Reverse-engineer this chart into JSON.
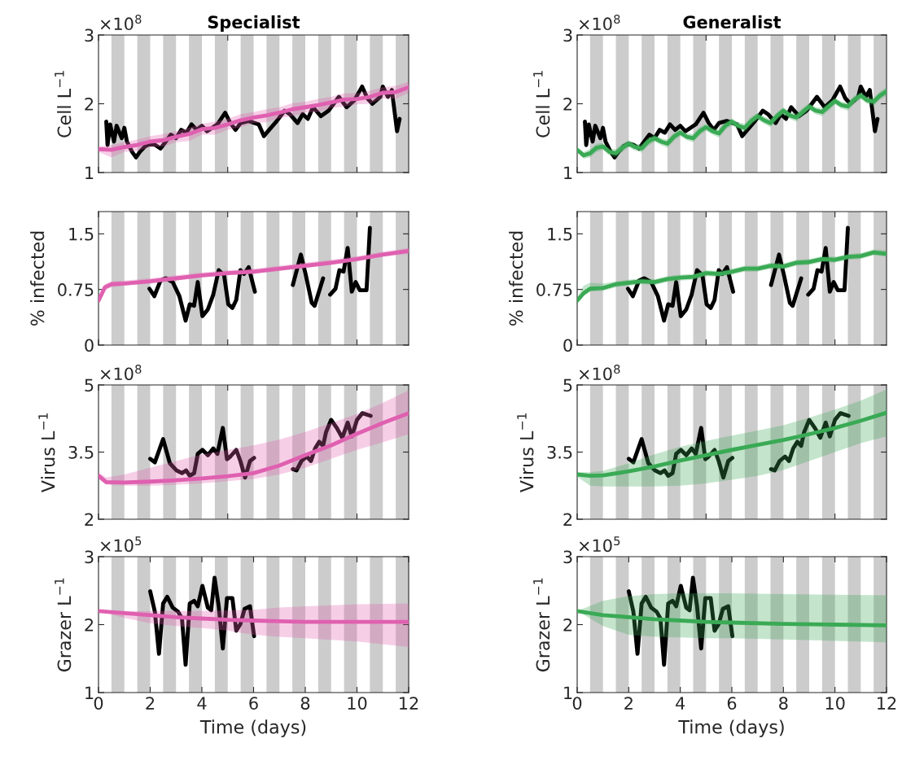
{
  "chart_data": [
    {
      "type": "line",
      "title": "Specialist",
      "ylabel": "Cell L$^{−1}$",
      "annotations": [
        "×10$^{8}$"
      ],
      "xlim": [
        0,
        12
      ],
      "xticks": [
        0,
        5,
        10
      ],
      "ylim": [
        1,
        3
      ],
      "yticks": [
        1,
        2,
        3
      ],
      "tick_labels": "y",
      "bands": [
        {
          "axis": "x",
          "from": 0.5,
          "to": 1,
          "color": "#cccccc"
        },
        {
          "axis": "x",
          "from": 1.5,
          "to": 2,
          "color": "#cccccc"
        },
        {
          "axis": "x",
          "from": 2.5,
          "to": 3,
          "color": "#cccccc"
        },
        {
          "axis": "x",
          "from": 3.5,
          "to": 4,
          "color": "#cccccc"
        },
        {
          "axis": "x",
          "from": 4.5,
          "to": 5,
          "color": "#cccccc"
        },
        {
          "axis": "x",
          "from": 5.5,
          "to": 6,
          "color": "#cccccc"
        },
        {
          "axis": "x",
          "from": 6.5,
          "to": 7,
          "color": "#cccccc"
        },
        {
          "axis": "x",
          "from": 7.5,
          "to": 8,
          "color": "#cccccc"
        },
        {
          "axis": "x",
          "from": 8.5,
          "to": 9,
          "color": "#cccccc"
        },
        {
          "axis": "x",
          "from": 9.5,
          "to": 10,
          "color": "#cccccc"
        },
        {
          "axis": "x",
          "from": 10.5,
          "to": 11,
          "color": "#cccccc"
        },
        {
          "axis": "x",
          "from": 11.5,
          "to": 12,
          "color": "#cccccc"
        }
      ],
      "series": [
        {
          "color": "#000000",
          "x": [
            0.3,
            0.35,
            0.45,
            0.6,
            0.7,
            0.9,
            1.0,
            1.1,
            1.3,
            1.45,
            1.6,
            1.8,
            2.0,
            2.2,
            2.4,
            2.6,
            2.8,
            3.0,
            3.2,
            3.4,
            3.6,
            3.8,
            4.0,
            4.2,
            4.4,
            4.6,
            4.9,
            5.1,
            5.3,
            5.5,
            5.8,
            6.2,
            6.4,
            6.6,
            6.9,
            7.2,
            7.4,
            7.7,
            7.9,
            8.1,
            8.3,
            8.6,
            8.9,
            9.3,
            9.6,
            9.9,
            10.2,
            10.4,
            10.6,
            10.9,
            11.0,
            11.2,
            11.35,
            11.45,
            11.55,
            11.65
          ],
          "values": [
            1.74,
            1.4,
            1.7,
            1.45,
            1.68,
            1.5,
            1.65,
            1.45,
            1.3,
            1.22,
            1.3,
            1.38,
            1.42,
            1.4,
            1.35,
            1.45,
            1.55,
            1.5,
            1.62,
            1.58,
            1.7,
            1.62,
            1.68,
            1.6,
            1.65,
            1.7,
            1.87,
            1.72,
            1.62,
            1.72,
            1.75,
            1.7,
            1.53,
            1.62,
            1.75,
            1.9,
            1.85,
            1.72,
            1.85,
            1.78,
            1.95,
            1.82,
            1.9,
            2.1,
            1.95,
            2.05,
            2.25,
            2.08,
            2.0,
            2.1,
            2.25,
            2.1,
            2.2,
            1.9,
            1.6,
            1.78
          ]
        },
        {
          "color": "#e060b0",
          "x": [
            0,
            0.5,
            1,
            1.5,
            2,
            2.5,
            3,
            3.5,
            4,
            4.5,
            5,
            5.5,
            6,
            6.5,
            7,
            7.5,
            8,
            8.5,
            9,
            9.5,
            10,
            10.5,
            11,
            11.5,
            12
          ],
          "values": [
            1.34,
            1.33,
            1.37,
            1.4,
            1.45,
            1.47,
            1.52,
            1.56,
            1.63,
            1.65,
            1.7,
            1.76,
            1.8,
            1.83,
            1.87,
            1.92,
            1.95,
            1.98,
            2.02,
            2.06,
            2.07,
            2.1,
            2.16,
            2.17,
            2.24
          ],
          "lower": [
            1.3,
            1.22,
            1.3,
            1.31,
            1.37,
            1.38,
            1.44,
            1.46,
            1.55,
            1.55,
            1.62,
            1.66,
            1.72,
            1.73,
            1.79,
            1.82,
            1.87,
            1.88,
            1.94,
            1.96,
            1.99,
            2.0,
            2.08,
            2.07,
            2.16
          ],
          "upper": [
            1.38,
            1.4,
            1.44,
            1.48,
            1.53,
            1.56,
            1.6,
            1.65,
            1.71,
            1.74,
            1.78,
            1.85,
            1.88,
            1.92,
            1.95,
            2.01,
            2.03,
            2.07,
            2.1,
            2.15,
            2.15,
            2.19,
            2.24,
            2.26,
            2.32
          ]
        }
      ]
    },
    {
      "type": "line",
      "title": "Generalist",
      "ylabel": "Cell L$^{−1}$",
      "annotations": [
        "×10$^{8}$"
      ],
      "xlim": [
        0,
        12
      ],
      "xticks": [
        0,
        5,
        10
      ],
      "ylim": [
        1,
        3
      ],
      "yticks": [
        1,
        2,
        3
      ],
      "tick_labels": "y",
      "bands": [
        {
          "axis": "x",
          "from": 0.5,
          "to": 1,
          "color": "#cccccc"
        },
        {
          "axis": "x",
          "from": 1.5,
          "to": 2,
          "color": "#cccccc"
        },
        {
          "axis": "x",
          "from": 2.5,
          "to": 3,
          "color": "#cccccc"
        },
        {
          "axis": "x",
          "from": 3.5,
          "to": 4,
          "color": "#cccccc"
        },
        {
          "axis": "x",
          "from": 4.5,
          "to": 5,
          "color": "#cccccc"
        },
        {
          "axis": "x",
          "from": 5.5,
          "to": 6,
          "color": "#cccccc"
        },
        {
          "axis": "x",
          "from": 6.5,
          "to": 7,
          "color": "#cccccc"
        },
        {
          "axis": "x",
          "from": 7.5,
          "to": 8,
          "color": "#cccccc"
        },
        {
          "axis": "x",
          "from": 8.5,
          "to": 9,
          "color": "#cccccc"
        },
        {
          "axis": "x",
          "from": 9.5,
          "to": 10,
          "color": "#cccccc"
        },
        {
          "axis": "x",
          "from": 10.5,
          "to": 11,
          "color": "#cccccc"
        },
        {
          "axis": "x",
          "from": 11.5,
          "to": 12,
          "color": "#cccccc"
        }
      ],
      "series": [
        {
          "color": "#000000",
          "x": [
            0.3,
            0.35,
            0.45,
            0.6,
            0.7,
            0.9,
            1.0,
            1.1,
            1.3,
            1.45,
            1.6,
            1.8,
            2.0,
            2.2,
            2.4,
            2.6,
            2.8,
            3.0,
            3.2,
            3.4,
            3.6,
            3.8,
            4.0,
            4.2,
            4.4,
            4.6,
            4.9,
            5.1,
            5.3,
            5.5,
            5.8,
            6.2,
            6.4,
            6.6,
            6.9,
            7.2,
            7.4,
            7.7,
            7.9,
            8.1,
            8.3,
            8.6,
            8.9,
            9.3,
            9.6,
            9.9,
            10.2,
            10.4,
            10.6,
            10.9,
            11.0,
            11.2,
            11.35,
            11.45,
            11.55,
            11.65
          ],
          "values": [
            1.74,
            1.4,
            1.7,
            1.45,
            1.68,
            1.5,
            1.65,
            1.45,
            1.3,
            1.22,
            1.3,
            1.38,
            1.42,
            1.4,
            1.35,
            1.45,
            1.55,
            1.5,
            1.62,
            1.58,
            1.7,
            1.62,
            1.68,
            1.6,
            1.65,
            1.7,
            1.87,
            1.72,
            1.62,
            1.72,
            1.75,
            1.7,
            1.53,
            1.62,
            1.75,
            1.9,
            1.85,
            1.72,
            1.85,
            1.78,
            1.95,
            1.82,
            1.9,
            2.1,
            1.95,
            2.05,
            2.25,
            2.08,
            2.0,
            2.1,
            2.25,
            2.1,
            2.2,
            1.9,
            1.6,
            1.78
          ]
        },
        {
          "color": "#3aaa55",
          "x": [
            0,
            0.25,
            0.5,
            0.75,
            1,
            1.25,
            1.5,
            1.75,
            2,
            2.25,
            2.5,
            2.75,
            3,
            3.25,
            3.5,
            3.75,
            4,
            4.25,
            4.5,
            4.75,
            5,
            5.25,
            5.5,
            5.75,
            6,
            6.25,
            6.5,
            6.75,
            7,
            7.25,
            7.5,
            7.75,
            8,
            8.25,
            8.5,
            8.75,
            9,
            9.25,
            9.5,
            9.75,
            10,
            10.25,
            10.5,
            10.75,
            11,
            11.25,
            11.5,
            11.75,
            12
          ],
          "values": [
            1.33,
            1.25,
            1.28,
            1.36,
            1.38,
            1.3,
            1.28,
            1.36,
            1.42,
            1.37,
            1.35,
            1.45,
            1.5,
            1.45,
            1.42,
            1.52,
            1.58,
            1.52,
            1.5,
            1.6,
            1.66,
            1.6,
            1.57,
            1.68,
            1.74,
            1.68,
            1.65,
            1.75,
            1.82,
            1.76,
            1.72,
            1.82,
            1.9,
            1.83,
            1.8,
            1.88,
            1.96,
            1.9,
            1.88,
            1.96,
            2.04,
            1.98,
            1.96,
            2.06,
            2.12,
            2.05,
            2.03,
            2.12,
            2.18
          ],
          "lower": [
            1.3,
            1.2,
            1.22,
            1.3,
            1.33,
            1.25,
            1.22,
            1.3,
            1.37,
            1.32,
            1.29,
            1.39,
            1.45,
            1.4,
            1.36,
            1.46,
            1.53,
            1.47,
            1.44,
            1.54,
            1.61,
            1.55,
            1.51,
            1.62,
            1.69,
            1.63,
            1.59,
            1.69,
            1.77,
            1.71,
            1.66,
            1.76,
            1.85,
            1.78,
            1.74,
            1.82,
            1.91,
            1.85,
            1.82,
            1.9,
            1.99,
            1.93,
            1.9,
            2.0,
            2.07,
            2.0,
            1.97,
            2.06,
            2.12
          ],
          "upper": [
            1.36,
            1.3,
            1.34,
            1.42,
            1.43,
            1.35,
            1.34,
            1.42,
            1.47,
            1.42,
            1.41,
            1.51,
            1.55,
            1.5,
            1.48,
            1.58,
            1.63,
            1.57,
            1.56,
            1.66,
            1.71,
            1.65,
            1.63,
            1.74,
            1.79,
            1.73,
            1.71,
            1.81,
            1.87,
            1.81,
            1.78,
            1.88,
            1.95,
            1.88,
            1.86,
            1.94,
            2.01,
            1.95,
            1.94,
            2.02,
            2.09,
            2.03,
            2.02,
            2.12,
            2.17,
            2.1,
            2.09,
            2.18,
            2.24
          ]
        }
      ]
    },
    {
      "type": "line",
      "ylabel": "% infected",
      "xlim": [
        0,
        12
      ],
      "xticks": [
        0,
        5,
        10
      ],
      "ylim": [
        0,
        1.8
      ],
      "yticks": [
        0,
        0.75,
        1.5
      ],
      "tick_labels": "y",
      "bands": [
        {
          "axis": "x",
          "from": 0.5,
          "to": 1,
          "color": "#cccccc"
        },
        {
          "axis": "x",
          "from": 1.5,
          "to": 2,
          "color": "#cccccc"
        },
        {
          "axis": "x",
          "from": 2.5,
          "to": 3,
          "color": "#cccccc"
        },
        {
          "axis": "x",
          "from": 3.5,
          "to": 4,
          "color": "#cccccc"
        },
        {
          "axis": "x",
          "from": 4.5,
          "to": 5,
          "color": "#cccccc"
        },
        {
          "axis": "x",
          "from": 5.5,
          "to": 6,
          "color": "#cccccc"
        },
        {
          "axis": "x",
          "from": 6.5,
          "to": 7,
          "color": "#cccccc"
        },
        {
          "axis": "x",
          "from": 7.5,
          "to": 8,
          "color": "#cccccc"
        },
        {
          "axis": "x",
          "from": 8.5,
          "to": 9,
          "color": "#cccccc"
        },
        {
          "axis": "x",
          "from": 9.5,
          "to": 10,
          "color": "#cccccc"
        },
        {
          "axis": "x",
          "from": 10.5,
          "to": 11,
          "color": "#cccccc"
        },
        {
          "axis": "x",
          "from": 11.5,
          "to": 12,
          "color": "#cccccc"
        }
      ],
      "series": [
        {
          "color": "#000000",
          "x": [
            1.97,
            2.16,
            2.4,
            2.6,
            2.87,
            3.13,
            3.37,
            3.53,
            3.7,
            3.84,
            4.02,
            4.23,
            4.44,
            4.65,
            4.86,
            5.02,
            5.18,
            5.33,
            5.49,
            5.63,
            5.81,
            6.05,
            6.8,
            7.52,
            7.83,
            8.01,
            8.25,
            8.36,
            8.69,
            8.8,
            8.96,
            9.17,
            9.32,
            9.48,
            9.64,
            9.8,
            9.95,
            10.11,
            10.37,
            10.5
          ],
          "values": [
            0.76,
            0.66,
            0.87,
            0.9,
            0.85,
            0.66,
            0.33,
            0.55,
            0.53,
            0.85,
            0.39,
            0.48,
            0.68,
            1.01,
            0.94,
            0.55,
            0.5,
            0.61,
            1.01,
            0.96,
            1.05,
            0.72,
            null,
            0.81,
            1.22,
            0.96,
            0.57,
            0.53,
            0.9,
            null,
            0.68,
            0.76,
            1.01,
            0.99,
            1.31,
            0.72,
            0.85,
            0.74,
            0.74,
            1.58
          ]
        },
        {
          "color": "#e060b0",
          "x": [
            0,
            0.25,
            0.5,
            1,
            2,
            3,
            4,
            5,
            6,
            7,
            8,
            9,
            10,
            11,
            12
          ],
          "values": [
            0.6,
            0.78,
            0.82,
            0.83,
            0.86,
            0.9,
            0.94,
            0.97,
            0.99,
            1.03,
            1.07,
            1.11,
            1.16,
            1.22,
            1.27
          ],
          "lower": [
            0.57,
            0.74,
            0.78,
            0.8,
            0.83,
            0.87,
            0.91,
            0.94,
            0.96,
            1.0,
            1.04,
            1.08,
            1.13,
            1.19,
            1.23
          ],
          "upper": [
            0.63,
            0.82,
            0.86,
            0.87,
            0.9,
            0.94,
            0.98,
            1.01,
            1.03,
            1.07,
            1.11,
            1.15,
            1.2,
            1.26,
            1.31
          ]
        }
      ]
    },
    {
      "type": "line",
      "ylabel": "% infected",
      "xlim": [
        0,
        12
      ],
      "xticks": [
        0,
        5,
        10
      ],
      "ylim": [
        0,
        1.8
      ],
      "yticks": [
        0,
        0.75,
        1.5
      ],
      "tick_labels": "y",
      "bands": [
        {
          "axis": "x",
          "from": 0.5,
          "to": 1,
          "color": "#cccccc"
        },
        {
          "axis": "x",
          "from": 1.5,
          "to": 2,
          "color": "#cccccc"
        },
        {
          "axis": "x",
          "from": 2.5,
          "to": 3,
          "color": "#cccccc"
        },
        {
          "axis": "x",
          "from": 3.5,
          "to": 4,
          "color": "#cccccc"
        },
        {
          "axis": "x",
          "from": 4.5,
          "to": 5,
          "color": "#cccccc"
        },
        {
          "axis": "x",
          "from": 5.5,
          "to": 6,
          "color": "#cccccc"
        },
        {
          "axis": "x",
          "from": 6.5,
          "to": 7,
          "color": "#cccccc"
        },
        {
          "axis": "x",
          "from": 7.5,
          "to": 8,
          "color": "#cccccc"
        },
        {
          "axis": "x",
          "from": 8.5,
          "to": 9,
          "color": "#cccccc"
        },
        {
          "axis": "x",
          "from": 9.5,
          "to": 10,
          "color": "#cccccc"
        },
        {
          "axis": "x",
          "from": 10.5,
          "to": 11,
          "color": "#cccccc"
        },
        {
          "axis": "x",
          "from": 11.5,
          "to": 12,
          "color": "#cccccc"
        }
      ],
      "series": [
        {
          "color": "#000000",
          "x": [
            1.97,
            2.16,
            2.4,
            2.6,
            2.87,
            3.13,
            3.37,
            3.53,
            3.7,
            3.84,
            4.02,
            4.23,
            4.44,
            4.65,
            4.86,
            5.02,
            5.18,
            5.33,
            5.49,
            5.63,
            5.81,
            6.05,
            6.8,
            7.52,
            7.83,
            8.01,
            8.25,
            8.36,
            8.69,
            8.8,
            8.96,
            9.17,
            9.32,
            9.48,
            9.64,
            9.8,
            9.95,
            10.11,
            10.37,
            10.5
          ],
          "values": [
            0.76,
            0.66,
            0.87,
            0.9,
            0.85,
            0.66,
            0.33,
            0.55,
            0.53,
            0.85,
            0.39,
            0.48,
            0.68,
            1.01,
            0.94,
            0.55,
            0.5,
            0.61,
            1.01,
            0.96,
            1.05,
            0.72,
            null,
            0.81,
            1.22,
            0.96,
            0.57,
            0.53,
            0.9,
            null,
            0.68,
            0.76,
            1.01,
            0.99,
            1.31,
            0.72,
            0.85,
            0.74,
            0.74,
            1.58
          ]
        },
        {
          "color": "#3aaa55",
          "x": [
            0,
            0.25,
            0.5,
            1,
            1.5,
            2,
            2.5,
            3,
            3.5,
            4,
            4.5,
            5,
            5.5,
            6,
            6.5,
            7,
            7.5,
            8,
            8.5,
            9,
            9.5,
            10,
            10.5,
            11,
            11.5,
            12
          ],
          "values": [
            0.6,
            0.7,
            0.76,
            0.77,
            0.82,
            0.84,
            0.86,
            0.85,
            0.89,
            0.91,
            0.92,
            0.97,
            0.96,
            0.99,
            1.03,
            1.03,
            1.07,
            1.06,
            1.11,
            1.12,
            1.16,
            1.15,
            1.19,
            1.2,
            1.25,
            1.23
          ],
          "lower": [
            0.56,
            0.66,
            0.72,
            0.73,
            0.78,
            0.8,
            0.82,
            0.81,
            0.85,
            0.87,
            0.88,
            0.93,
            0.92,
            0.95,
            0.99,
            0.99,
            1.03,
            1.02,
            1.07,
            1.08,
            1.12,
            1.11,
            1.15,
            1.16,
            1.21,
            1.19
          ],
          "upper": [
            0.64,
            0.8,
            0.84,
            0.83,
            0.86,
            0.88,
            0.9,
            0.89,
            0.93,
            0.95,
            0.96,
            1.01,
            1.0,
            1.03,
            1.07,
            1.07,
            1.11,
            1.1,
            1.15,
            1.16,
            1.2,
            1.19,
            1.23,
            1.24,
            1.29,
            1.28
          ]
        }
      ]
    },
    {
      "type": "line",
      "ylabel": "Virus L$^{−1}$",
      "annotations": [
        "×10$^{8}$"
      ],
      "xlim": [
        0,
        12
      ],
      "xticks": [
        0,
        5,
        10
      ],
      "ylim": [
        2,
        5
      ],
      "yticks": [
        2,
        3.5,
        5
      ],
      "tick_labels": "y",
      "bands": [
        {
          "axis": "x",
          "from": 0.5,
          "to": 1,
          "color": "#cccccc"
        },
        {
          "axis": "x",
          "from": 1.5,
          "to": 2,
          "color": "#cccccc"
        },
        {
          "axis": "x",
          "from": 2.5,
          "to": 3,
          "color": "#cccccc"
        },
        {
          "axis": "x",
          "from": 3.5,
          "to": 4,
          "color": "#cccccc"
        },
        {
          "axis": "x",
          "from": 4.5,
          "to": 5,
          "color": "#cccccc"
        },
        {
          "axis": "x",
          "from": 5.5,
          "to": 6,
          "color": "#cccccc"
        },
        {
          "axis": "x",
          "from": 6.5,
          "to": 7,
          "color": "#cccccc"
        },
        {
          "axis": "x",
          "from": 7.5,
          "to": 8,
          "color": "#cccccc"
        },
        {
          "axis": "x",
          "from": 8.5,
          "to": 9,
          "color": "#cccccc"
        },
        {
          "axis": "x",
          "from": 9.5,
          "to": 10,
          "color": "#cccccc"
        },
        {
          "axis": "x",
          "from": 10.5,
          "to": 11,
          "color": "#cccccc"
        },
        {
          "axis": "x",
          "from": 11.5,
          "to": 12,
          "color": "#cccccc"
        }
      ],
      "series": [
        {
          "color": "#000000",
          "x": [
            2.0,
            2.18,
            2.5,
            2.76,
            3.02,
            3.23,
            3.39,
            3.53,
            3.7,
            3.84,
            4.02,
            4.23,
            4.44,
            4.6,
            4.81,
            4.97,
            5.1,
            5.33,
            5.49,
            5.67,
            5.86,
            6.02,
            6.8,
            7.52,
            7.66,
            7.85,
            8.06,
            8.22,
            8.38,
            8.54,
            8.69,
            8.8,
            9.0,
            9.22,
            9.43,
            9.64,
            9.8,
            10.0,
            10.21,
            10.53
          ],
          "values": [
            3.35,
            3.27,
            3.79,
            3.25,
            3.09,
            3.03,
            3.09,
            2.97,
            3.03,
            3.46,
            3.55,
            3.43,
            3.58,
            3.46,
            4.04,
            3.34,
            3.4,
            3.55,
            3.3,
            2.93,
            3.3,
            3.37,
            null,
            3.12,
            3.09,
            3.3,
            3.4,
            3.3,
            3.58,
            3.73,
            3.64,
            3.94,
            4.22,
            4.04,
            3.82,
            4.16,
            3.85,
            4.22,
            4.37,
            4.31
          ]
        },
        {
          "color": "#e060b0",
          "x": [
            0,
            0.3,
            1,
            2,
            3,
            4,
            5,
            6,
            7,
            8,
            9,
            10,
            11,
            12
          ],
          "values": [
            2.97,
            2.83,
            2.82,
            2.84,
            2.87,
            2.91,
            2.96,
            3.03,
            3.2,
            3.43,
            3.65,
            3.91,
            4.15,
            4.37
          ],
          "lower": [
            2.9,
            2.77,
            2.75,
            2.75,
            2.77,
            2.8,
            2.85,
            2.9,
            3.0,
            3.15,
            3.35,
            3.55,
            3.72,
            3.9
          ],
          "upper": [
            3.05,
            2.93,
            3.0,
            3.15,
            3.3,
            3.45,
            3.55,
            3.65,
            3.78,
            3.95,
            4.15,
            4.35,
            4.6,
            4.88
          ]
        }
      ]
    },
    {
      "type": "line",
      "ylabel": "Virus L$^{−1}$",
      "annotations": [
        "×10$^{8}$"
      ],
      "xlim": [
        0,
        12
      ],
      "xticks": [
        0,
        5,
        10
      ],
      "ylim": [
        2,
        5
      ],
      "yticks": [
        2,
        3.5,
        5
      ],
      "tick_labels": "y",
      "bands": [
        {
          "axis": "x",
          "from": 0.5,
          "to": 1,
          "color": "#cccccc"
        },
        {
          "axis": "x",
          "from": 1.5,
          "to": 2,
          "color": "#cccccc"
        },
        {
          "axis": "x",
          "from": 2.5,
          "to": 3,
          "color": "#cccccc"
        },
        {
          "axis": "x",
          "from": 3.5,
          "to": 4,
          "color": "#cccccc"
        },
        {
          "axis": "x",
          "from": 4.5,
          "to": 5,
          "color": "#cccccc"
        },
        {
          "axis": "x",
          "from": 5.5,
          "to": 6,
          "color": "#cccccc"
        },
        {
          "axis": "x",
          "from": 6.5,
          "to": 7,
          "color": "#cccccc"
        },
        {
          "axis": "x",
          "from": 7.5,
          "to": 8,
          "color": "#cccccc"
        },
        {
          "axis": "x",
          "from": 8.5,
          "to": 9,
          "color": "#cccccc"
        },
        {
          "axis": "x",
          "from": 9.5,
          "to": 10,
          "color": "#cccccc"
        },
        {
          "axis": "x",
          "from": 10.5,
          "to": 11,
          "color": "#cccccc"
        },
        {
          "axis": "x",
          "from": 11.5,
          "to": 12,
          "color": "#cccccc"
        }
      ],
      "series": [
        {
          "color": "#000000",
          "x": [
            2.0,
            2.18,
            2.5,
            2.76,
            3.02,
            3.23,
            3.39,
            3.53,
            3.7,
            3.84,
            4.02,
            4.23,
            4.44,
            4.6,
            4.81,
            4.97,
            5.1,
            5.33,
            5.49,
            5.67,
            5.86,
            6.02,
            6.8,
            7.52,
            7.66,
            7.85,
            8.06,
            8.22,
            8.38,
            8.54,
            8.69,
            8.8,
            9.0,
            9.22,
            9.43,
            9.64,
            9.8,
            10.0,
            10.21,
            10.53
          ],
          "values": [
            3.35,
            3.27,
            3.79,
            3.25,
            3.09,
            3.03,
            3.09,
            2.97,
            3.03,
            3.46,
            3.55,
            3.43,
            3.58,
            3.46,
            4.04,
            3.34,
            3.4,
            3.55,
            3.3,
            2.93,
            3.3,
            3.37,
            null,
            3.12,
            3.09,
            3.3,
            3.4,
            3.3,
            3.58,
            3.73,
            3.64,
            3.94,
            4.22,
            4.04,
            3.82,
            4.16,
            3.85,
            4.22,
            4.37,
            4.31
          ]
        },
        {
          "color": "#3aaa55",
          "x": [
            0,
            0.5,
            1,
            2,
            3,
            4,
            5,
            6,
            7,
            8,
            9,
            10,
            11,
            12
          ],
          "values": [
            3.0,
            2.97,
            2.98,
            3.07,
            3.18,
            3.31,
            3.43,
            3.55,
            3.66,
            3.77,
            3.9,
            4.04,
            4.2,
            4.38
          ],
          "lower": [
            2.95,
            2.75,
            2.73,
            2.73,
            2.73,
            2.75,
            2.8,
            2.88,
            2.97,
            3.1,
            3.3,
            3.5,
            3.7,
            3.85
          ],
          "upper": [
            3.05,
            3.05,
            3.08,
            3.25,
            3.45,
            3.62,
            3.75,
            3.87,
            3.98,
            4.1,
            4.27,
            4.45,
            4.65,
            4.9
          ]
        }
      ]
    },
    {
      "type": "line",
      "ylabel": "Grazer L$^{−1}$",
      "xlabel": "Time (days)",
      "annotations": [
        "×10$^{5}$"
      ],
      "xlim": [
        0,
        12
      ],
      "xticks": [
        0,
        2,
        4,
        6,
        8,
        10,
        12
      ],
      "ylim": [
        1,
        3
      ],
      "yticks": [
        1,
        2,
        3
      ],
      "bands": [
        {
          "axis": "x",
          "from": 0.5,
          "to": 1,
          "color": "#cccccc"
        },
        {
          "axis": "x",
          "from": 1.5,
          "to": 2,
          "color": "#cccccc"
        },
        {
          "axis": "x",
          "from": 2.5,
          "to": 3,
          "color": "#cccccc"
        },
        {
          "axis": "x",
          "from": 3.5,
          "to": 4,
          "color": "#cccccc"
        },
        {
          "axis": "x",
          "from": 4.5,
          "to": 5,
          "color": "#cccccc"
        },
        {
          "axis": "x",
          "from": 5.5,
          "to": 6,
          "color": "#cccccc"
        },
        {
          "axis": "x",
          "from": 6.5,
          "to": 7,
          "color": "#cccccc"
        },
        {
          "axis": "x",
          "from": 7.5,
          "to": 8,
          "color": "#cccccc"
        },
        {
          "axis": "x",
          "from": 8.5,
          "to": 9,
          "color": "#cccccc"
        },
        {
          "axis": "x",
          "from": 9.5,
          "to": 10,
          "color": "#cccccc"
        },
        {
          "axis": "x",
          "from": 10.5,
          "to": 11,
          "color": "#cccccc"
        },
        {
          "axis": "x",
          "from": 11.5,
          "to": 12,
          "color": "#cccccc"
        }
      ],
      "series": [
        {
          "color": "#000000",
          "x": [
            2.0,
            2.18,
            2.34,
            2.5,
            2.66,
            2.87,
            3.08,
            3.23,
            3.37,
            3.53,
            3.7,
            3.84,
            4.02,
            4.23,
            4.36,
            4.49,
            4.65,
            4.81,
            4.97,
            5.18,
            5.33,
            5.49,
            5.65,
            5.86,
            6.02
          ],
          "values": [
            2.49,
            2.19,
            1.57,
            2.31,
            2.41,
            2.25,
            2.19,
            2.09,
            1.41,
            2.31,
            2.35,
            2.27,
            2.57,
            2.25,
            2.21,
            2.69,
            2.27,
            1.65,
            2.39,
            2.39,
            1.91,
            2.01,
            2.23,
            2.27,
            1.83
          ]
        },
        {
          "color": "#e060b0",
          "x": [
            0,
            1,
            2,
            3,
            4,
            5,
            6,
            7,
            8,
            10,
            12
          ],
          "values": [
            2.2,
            2.17,
            2.14,
            2.11,
            2.09,
            2.07,
            2.06,
            2.05,
            2.04,
            2.04,
            2.04
          ],
          "lower": [
            2.2,
            2.1,
            2.02,
            1.98,
            1.95,
            1.91,
            1.85,
            1.82,
            1.8,
            1.75,
            1.67
          ],
          "upper": [
            2.2,
            2.2,
            2.2,
            2.2,
            2.2,
            2.21,
            2.22,
            2.25,
            2.27,
            2.3,
            2.31
          ]
        }
      ]
    },
    {
      "type": "line",
      "ylabel": "Grazer L$^{−1}$",
      "xlabel": "Time (days)",
      "annotations": [
        "×10$^{5}$"
      ],
      "xlim": [
        0,
        12
      ],
      "xticks": [
        0,
        2,
        4,
        6,
        8,
        10,
        12
      ],
      "ylim": [
        1,
        3
      ],
      "yticks": [
        1,
        2,
        3
      ],
      "bands": [
        {
          "axis": "x",
          "from": 0.5,
          "to": 1,
          "color": "#cccccc"
        },
        {
          "axis": "x",
          "from": 1.5,
          "to": 2,
          "color": "#cccccc"
        },
        {
          "axis": "x",
          "from": 2.5,
          "to": 3,
          "color": "#cccccc"
        },
        {
          "axis": "x",
          "from": 3.5,
          "to": 4,
          "color": "#cccccc"
        },
        {
          "axis": "x",
          "from": 4.5,
          "to": 5,
          "color": "#cccccc"
        },
        {
          "axis": "x",
          "from": 5.5,
          "to": 6,
          "color": "#cccccc"
        },
        {
          "axis": "x",
          "from": 6.5,
          "to": 7,
          "color": "#cccccc"
        },
        {
          "axis": "x",
          "from": 7.5,
          "to": 8,
          "color": "#cccccc"
        },
        {
          "axis": "x",
          "from": 8.5,
          "to": 9,
          "color": "#cccccc"
        },
        {
          "axis": "x",
          "from": 9.5,
          "to": 10,
          "color": "#cccccc"
        },
        {
          "axis": "x",
          "from": 10.5,
          "to": 11,
          "color": "#cccccc"
        },
        {
          "axis": "x",
          "from": 11.5,
          "to": 12,
          "color": "#cccccc"
        }
      ],
      "series": [
        {
          "color": "#000000",
          "x": [
            2.0,
            2.18,
            2.34,
            2.5,
            2.66,
            2.87,
            3.08,
            3.23,
            3.37,
            3.53,
            3.7,
            3.84,
            4.02,
            4.23,
            4.36,
            4.49,
            4.65,
            4.81,
            4.97,
            5.18,
            5.33,
            5.49,
            5.65,
            5.86,
            6.02
          ],
          "values": [
            2.49,
            2.19,
            1.57,
            2.31,
            2.41,
            2.25,
            2.19,
            2.09,
            1.41,
            2.31,
            2.35,
            2.27,
            2.57,
            2.25,
            2.21,
            2.69,
            2.27,
            1.65,
            2.39,
            2.39,
            1.91,
            2.01,
            2.23,
            2.27,
            1.83
          ]
        },
        {
          "color": "#3aaa55",
          "x": [
            0,
            1,
            2,
            3,
            4,
            5,
            6,
            8,
            10,
            12
          ],
          "values": [
            2.2,
            2.14,
            2.11,
            2.08,
            2.06,
            2.04,
            2.03,
            2.01,
            2.0,
            1.99
          ],
          "lower": [
            2.2,
            1.98,
            1.85,
            1.82,
            1.81,
            1.8,
            1.8,
            1.78,
            1.76,
            1.74
          ],
          "upper": [
            2.2,
            2.35,
            2.42,
            2.45,
            2.46,
            2.46,
            2.46,
            2.45,
            2.44,
            2.43
          ]
        }
      ]
    }
  ]
}
